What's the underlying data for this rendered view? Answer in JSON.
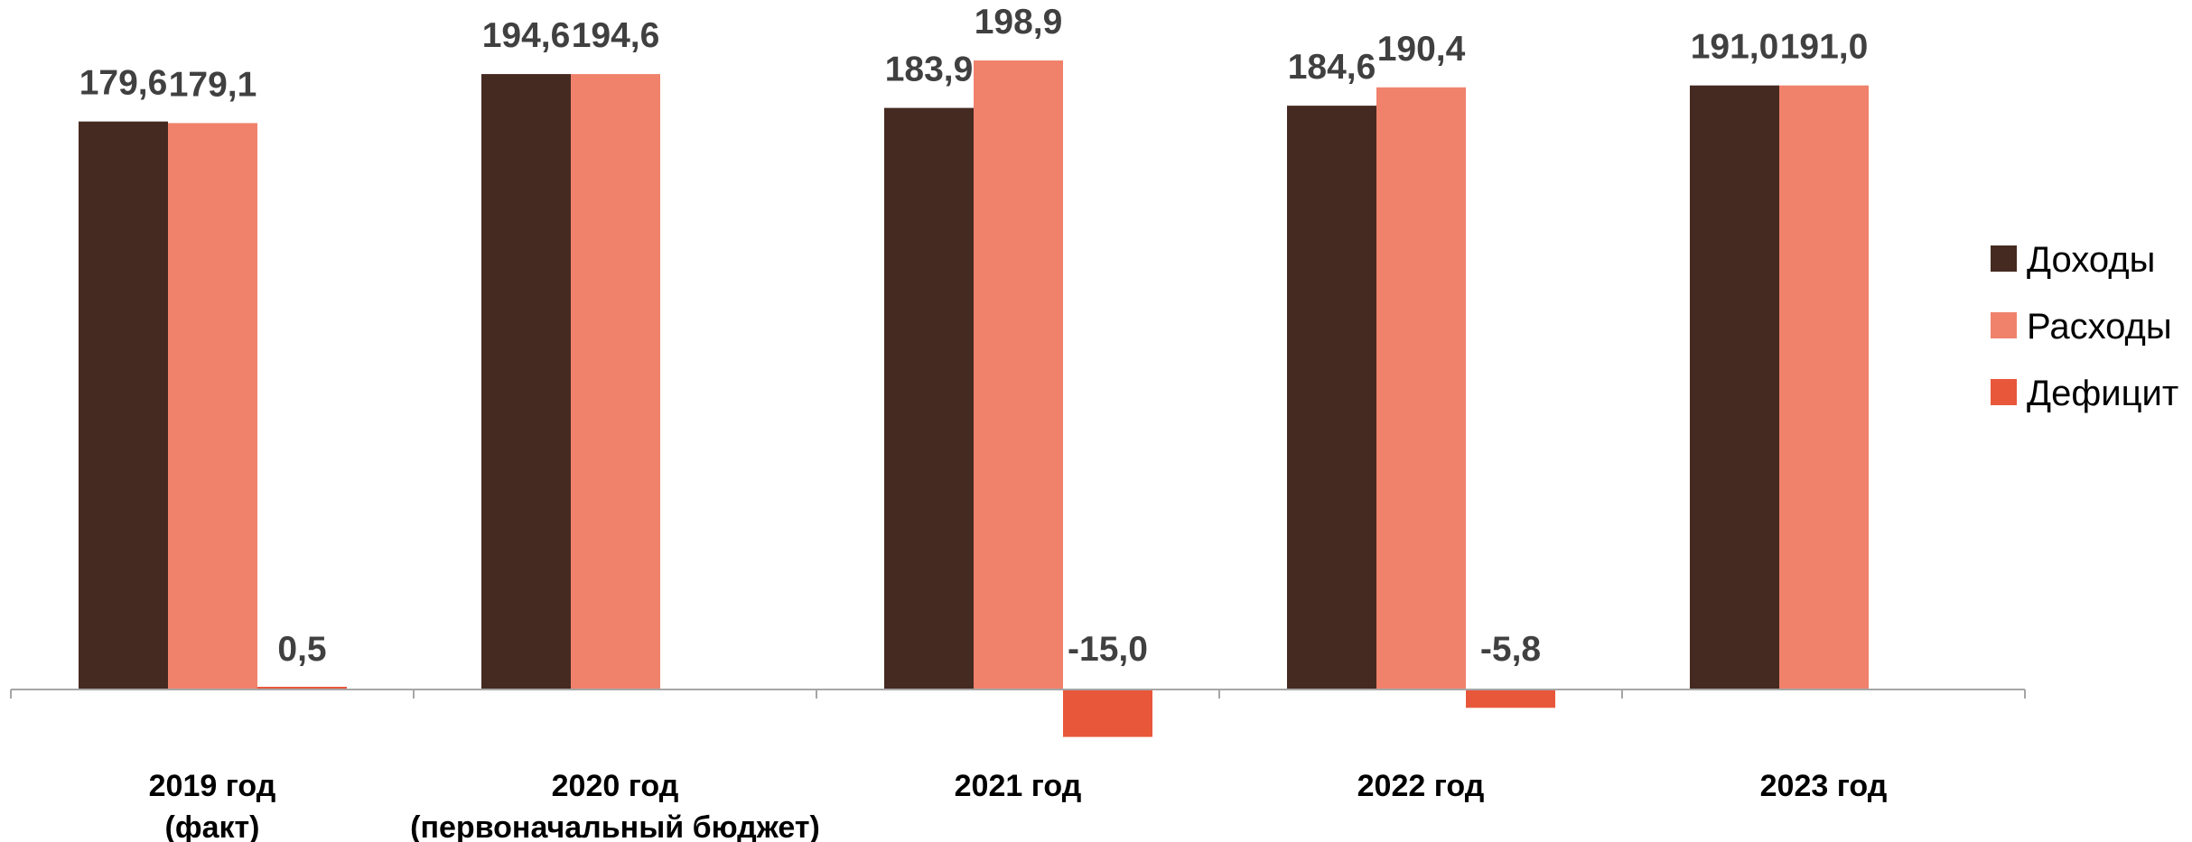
{
  "chart_data": {
    "type": "bar",
    "categories": [
      [
        "2019 год",
        "(факт)"
      ],
      [
        "2020 год",
        "(первоначальный бюджет)"
      ],
      [
        "2021 год"
      ],
      [
        "2022 год"
      ],
      [
        "2023 год"
      ]
    ],
    "series": [
      {
        "name": "Доходы",
        "color": "#452a21",
        "values": [
          179.6,
          194.6,
          183.9,
          184.6,
          191.0
        ],
        "labels": [
          "179,6",
          "194,6",
          "183,9",
          "184,6",
          "191,0"
        ]
      },
      {
        "name": "Расходы",
        "color": "#f0826c",
        "values": [
          179.1,
          194.6,
          198.9,
          190.4,
          191.0
        ],
        "labels": [
          "179,1",
          "194,6",
          "198,9",
          "190,4",
          "191,0"
        ]
      },
      {
        "name": "Дефицит",
        "color": "#e9573b",
        "values": [
          0.5,
          null,
          -15.0,
          -5.8,
          null
        ],
        "labels": [
          "0,5",
          null,
          "-15,0",
          "-5,8",
          null
        ]
      }
    ],
    "ylim": [
      -15.0,
      198.9
    ],
    "grid": false,
    "legend_position": "right"
  }
}
